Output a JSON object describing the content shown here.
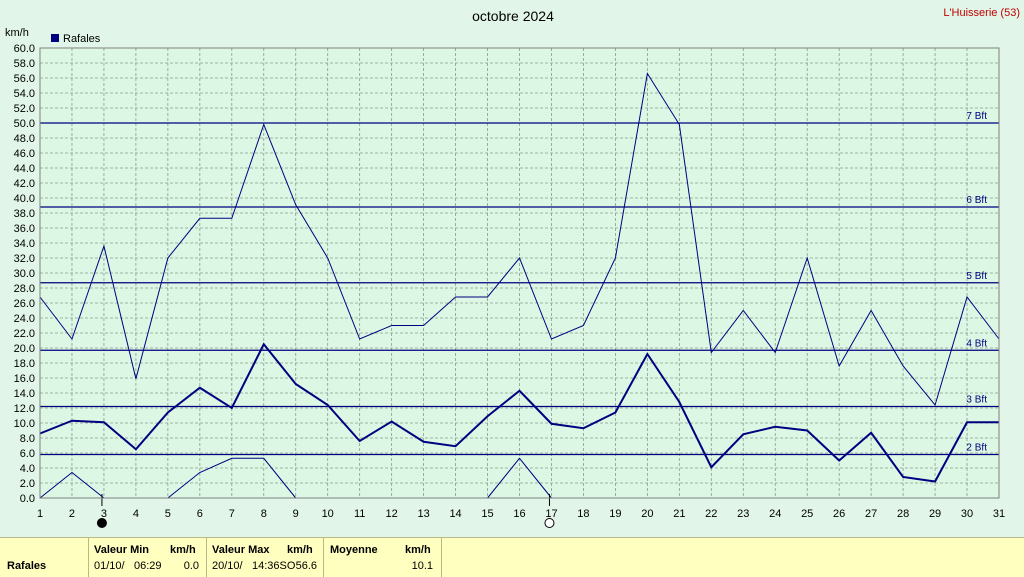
{
  "header": {
    "title": "octobre 2024",
    "station": "L'Huisserie (53)",
    "unit": "km/h"
  },
  "chart_data": {
    "type": "line",
    "title": "octobre 2024",
    "ylabel": "km/h",
    "ylim": [
      0,
      60
    ],
    "yticks": [
      "0.0",
      "2.0",
      "4.0",
      "6.0",
      "8.0",
      "10.0",
      "12.0",
      "14.0",
      "16.0",
      "18.0",
      "20.0",
      "22.0",
      "24.0",
      "26.0",
      "28.0",
      "30.0",
      "32.0",
      "34.0",
      "36.0",
      "38.0",
      "40.0",
      "42.0",
      "44.0",
      "46.0",
      "48.0",
      "50.0",
      "52.0",
      "54.0",
      "56.0",
      "58.0",
      "60.0"
    ],
    "categories": [
      "1",
      "2",
      "3",
      "4",
      "5",
      "6",
      "7",
      "8",
      "9",
      "10",
      "11",
      "12",
      "13",
      "14",
      "15",
      "16",
      "17",
      "18",
      "19",
      "20",
      "21",
      "22",
      "23",
      "24",
      "25",
      "26",
      "27",
      "28",
      "29",
      "30",
      "31"
    ],
    "legend": {
      "label": "Rafales",
      "color": "#000080",
      "placement": "top-left"
    },
    "grid": true,
    "series": [
      {
        "name": "Rafales",
        "style": "bold",
        "values": [
          8.6,
          10.3,
          10.1,
          6.5,
          11.4,
          14.7,
          12.0,
          20.5,
          15.2,
          12.4,
          7.6,
          10.2,
          7.5,
          6.9,
          10.9,
          14.3,
          9.9,
          9.3,
          11.4,
          19.2,
          12.8,
          4.1,
          8.5,
          9.5,
          9.0,
          5.0,
          8.7,
          2.8,
          2.2,
          10.1,
          10.1
        ]
      },
      {
        "role": "max",
        "values": [
          26.8,
          21.2,
          33.6,
          15.9,
          32.0,
          37.3,
          37.3,
          49.8,
          39.1,
          32.0,
          21.2,
          23.0,
          23.0,
          26.8,
          26.8,
          32.0,
          21.2,
          23.0,
          32.0,
          56.6,
          49.8,
          19.4,
          25.0,
          19.4,
          32.0,
          17.6,
          25.0,
          17.6,
          12.4,
          26.8,
          21.2
        ]
      },
      {
        "role": "min",
        "values": [
          0.0,
          3.4,
          0.0,
          null,
          0.0,
          3.4,
          5.3,
          5.3,
          0.0,
          null,
          null,
          null,
          null,
          null,
          0.0,
          5.3,
          0.0,
          null,
          null,
          null,
          null,
          null,
          null,
          null,
          null,
          null,
          null,
          null,
          null,
          null,
          null
        ]
      }
    ],
    "beaufort": [
      {
        "label": "2 Bft",
        "value": 5.8
      },
      {
        "label": "3 Bft",
        "value": 12.2
      },
      {
        "label": "4 Bft",
        "value": 19.7
      },
      {
        "label": "5 Bft",
        "value": 28.7
      },
      {
        "label": "6 Bft",
        "value": 38.8
      },
      {
        "label": "7 Bft",
        "value": 50.0
      }
    ],
    "moon": [
      {
        "day": 3,
        "phase": "new"
      },
      {
        "day": 17,
        "phase": "full"
      }
    ]
  },
  "footer": {
    "row_label": "Rafales",
    "min_label": "Valeur Min",
    "min_unit": "km/h",
    "min_date": "01/10/",
    "min_time": "06:29",
    "min_value": "0.0",
    "max_label": "Valeur Max",
    "max_unit": "km/h",
    "max_date": "20/10/",
    "max_time": "14:36SO",
    "max_value": "56.6",
    "avg_label": "Moyenne",
    "avg_unit": "km/h",
    "avg_value": "10.1"
  },
  "colors": {
    "plot_bg": "#dcf8e4",
    "page_bg": "#e1f5e8",
    "series": "#000080",
    "footer_bg": "#ffffc0"
  }
}
